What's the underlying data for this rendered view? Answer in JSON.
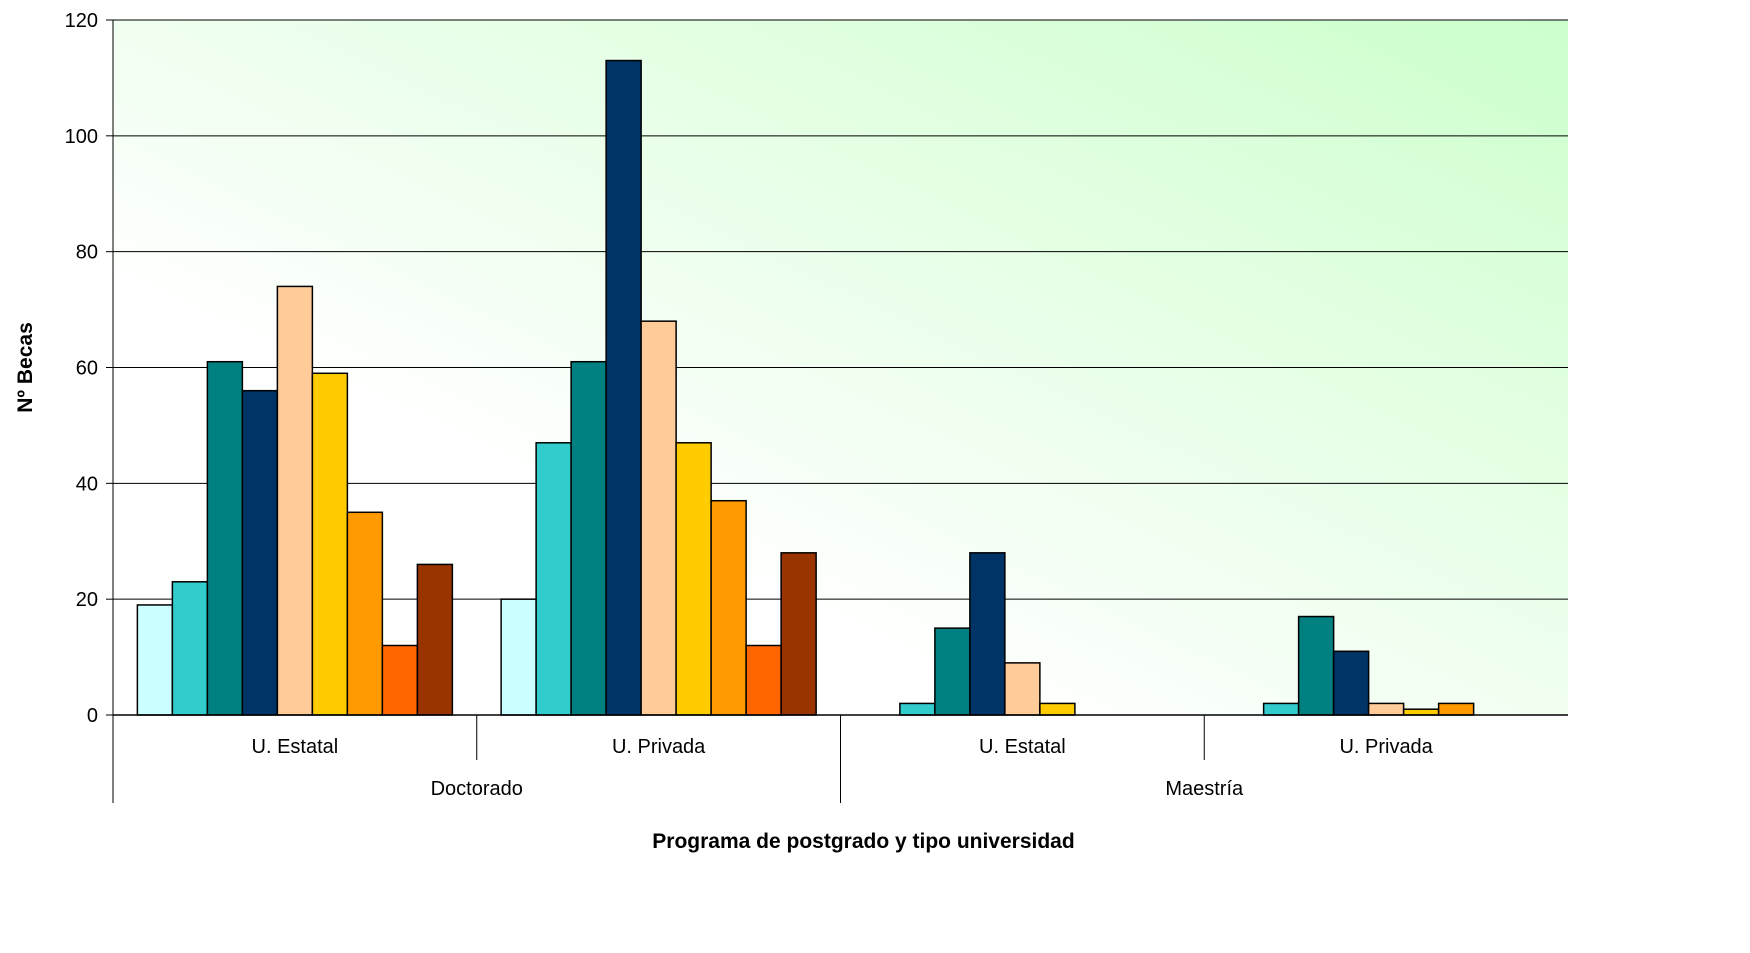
{
  "chart_data": {
    "type": "bar",
    "title": "",
    "xlabel": "Programa de postgrado y tipo universidad",
    "ylabel": "Nº Becas",
    "ylim": [
      0,
      120
    ],
    "yticks": [
      "0",
      "20",
      "40",
      "60",
      "80",
      "100",
      "120"
    ],
    "grid": true,
    "legend": "none",
    "categories": [
      "U. Estatal",
      "U. Privada",
      "U. Estatal",
      "U. Privada"
    ],
    "groups": [
      {
        "label": "Doctorado",
        "span": [
          0,
          1
        ]
      },
      {
        "label": "Maestría",
        "span": [
          2,
          3
        ]
      }
    ],
    "series": [
      {
        "color": "#ccffff",
        "values": [
          19,
          20,
          0,
          0
        ]
      },
      {
        "color": "#33cccc",
        "values": [
          23,
          47,
          2,
          2
        ]
      },
      {
        "color": "#008080",
        "values": [
          61,
          61,
          15,
          17
        ]
      },
      {
        "color": "#003366",
        "values": [
          56,
          113,
          28,
          11
        ]
      },
      {
        "color": "#ffcc99",
        "values": [
          74,
          68,
          9,
          2
        ]
      },
      {
        "color": "#ffcc00",
        "values": [
          59,
          47,
          2,
          1
        ]
      },
      {
        "color": "#ff9900",
        "values": [
          35,
          37,
          0,
          2
        ]
      },
      {
        "color": "#ff6600",
        "values": [
          12,
          12,
          0,
          0
        ]
      },
      {
        "color": "#993300",
        "values": [
          26,
          28,
          0,
          0
        ]
      }
    ],
    "background_gradient": [
      "#ffffff",
      "#ccffcc"
    ]
  }
}
